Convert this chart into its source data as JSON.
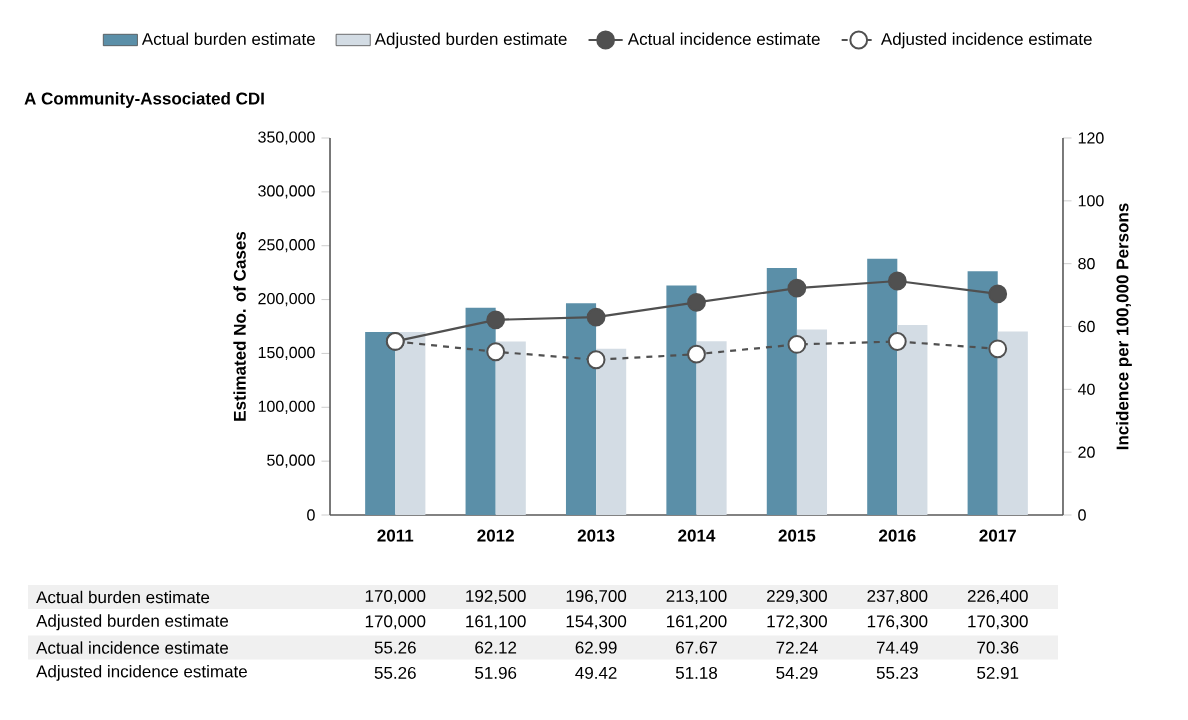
{
  "chart_data": {
    "type": "bar",
    "title": "A Community-Associated CDI",
    "categories": [
      "2011",
      "2012",
      "2013",
      "2014",
      "2015",
      "2016",
      "2017"
    ],
    "ylabel": "Estimated No. of Cases",
    "y2label": "Incidence per 100,000 Persons",
    "ylim": [
      0,
      350000
    ],
    "yticks": [
      0,
      {
        "value": 50000,
        "label": "50,000"
      },
      {
        "value": 100000,
        "label": "100,000"
      },
      {
        "value": 150000,
        "label": "150,000"
      },
      {
        "value": 200000,
        "label": "200,000"
      },
      {
        "value": 250000,
        "label": "250,000"
      },
      {
        "value": 300000,
        "label": "300,000"
      },
      {
        "value": 350000,
        "label": "350,000"
      }
    ],
    "y2lim": [
      0,
      120
    ],
    "y2ticks": [
      0,
      20,
      40,
      60,
      80,
      100,
      120
    ],
    "legend": "top",
    "series": [
      {
        "name": "Actual burden estimate",
        "color": "#5b8fa8",
        "values": [
          170000,
          192500,
          196700,
          213100,
          229300,
          237800,
          226400
        ],
        "value_labels": [
          "170,000",
          "192,500",
          "196,700",
          "213,100",
          "229,300",
          "237,800",
          "226,400"
        ]
      },
      {
        "name": "Adjusted burden estimate",
        "color": "#d3dce4",
        "values": [
          170000,
          161100,
          154300,
          161200,
          172300,
          176300,
          170300
        ],
        "value_labels": [
          "170,000",
          "161,100",
          "154,300",
          "161,200",
          "172,300",
          "176,300",
          "170,300"
        ]
      },
      {
        "name": "Actual incidence estimate",
        "type": "line",
        "axis": "y2",
        "color": "#505050",
        "marker": "circle",
        "line_style": "solid",
        "values": [
          55.26,
          62.12,
          62.99,
          67.67,
          72.24,
          74.49,
          70.36
        ],
        "value_labels": [
          "55.26",
          "62.12",
          "62.99",
          "67.67",
          "72.24",
          "74.49",
          "70.36"
        ]
      },
      {
        "name": "Adjusted incidence estimate",
        "type": "line",
        "axis": "y2",
        "color": "#505050",
        "marker": "circle",
        "line_style": "dashed",
        "values": [
          55.26,
          51.96,
          49.42,
          51.18,
          54.29,
          55.23,
          52.91
        ],
        "value_labels": [
          "55.26",
          "51.96",
          "49.42",
          "51.18",
          "54.29",
          "55.23",
          "52.91"
        ]
      }
    ]
  }
}
